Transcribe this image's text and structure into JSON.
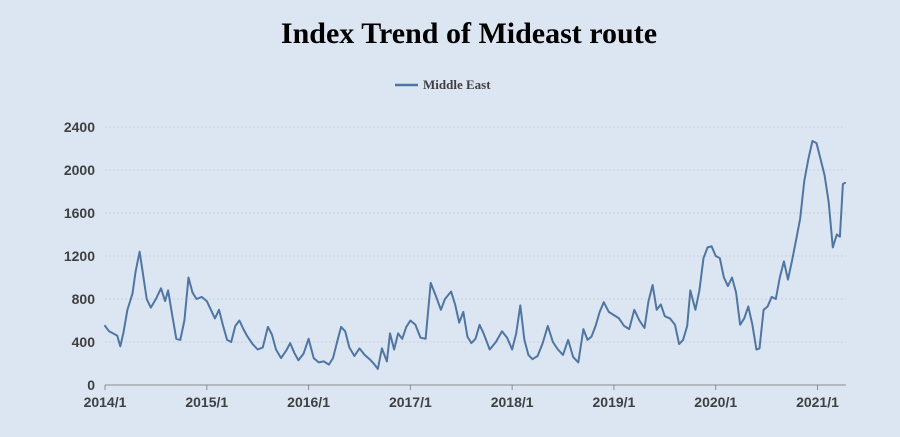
{
  "chart_data": {
    "type": "line",
    "title": "Index Trend of Mideast route",
    "xlabel": "",
    "ylabel": "",
    "legend_position": "top-center",
    "grid": true,
    "ylim": [
      0,
      2400
    ],
    "yticks": [
      0,
      400,
      800,
      1200,
      1600,
      2000,
      2400
    ],
    "xlim": [
      2014.0,
      2021.28
    ],
    "xticks": [
      {
        "value": 2014.0,
        "label": "2014/1"
      },
      {
        "value": 2015.0,
        "label": "2015/1"
      },
      {
        "value": 2016.0,
        "label": "2016/1"
      },
      {
        "value": 2017.0,
        "label": "2017/1"
      },
      {
        "value": 2018.0,
        "label": "2018/1"
      },
      {
        "value": 2019.0,
        "label": "2019/1"
      },
      {
        "value": 2020.0,
        "label": "2020/1"
      },
      {
        "value": 2021.0,
        "label": "2021/1"
      }
    ],
    "colors": {
      "series": "#4f76a3",
      "background": "#dce6f2"
    },
    "series": [
      {
        "name": "Middle East",
        "points": [
          [
            2014.0,
            550
          ],
          [
            2014.04,
            500
          ],
          [
            2014.08,
            480
          ],
          [
            2014.12,
            460
          ],
          [
            2014.15,
            360
          ],
          [
            2014.18,
            480
          ],
          [
            2014.22,
            700
          ],
          [
            2014.27,
            850
          ],
          [
            2014.3,
            1050
          ],
          [
            2014.34,
            1240
          ],
          [
            2014.37,
            1050
          ],
          [
            2014.41,
            800
          ],
          [
            2014.45,
            720
          ],
          [
            2014.5,
            800
          ],
          [
            2014.55,
            900
          ],
          [
            2014.59,
            780
          ],
          [
            2014.62,
            880
          ],
          [
            2014.66,
            650
          ],
          [
            2014.7,
            430
          ],
          [
            2014.74,
            420
          ],
          [
            2014.78,
            600
          ],
          [
            2014.82,
            1000
          ],
          [
            2014.86,
            860
          ],
          [
            2014.9,
            800
          ],
          [
            2014.95,
            820
          ],
          [
            2015.0,
            780
          ],
          [
            2015.04,
            700
          ],
          [
            2015.08,
            620
          ],
          [
            2015.12,
            700
          ],
          [
            2015.16,
            550
          ],
          [
            2015.2,
            420
          ],
          [
            2015.24,
            400
          ],
          [
            2015.28,
            550
          ],
          [
            2015.32,
            600
          ],
          [
            2015.36,
            520
          ],
          [
            2015.4,
            450
          ],
          [
            2015.45,
            380
          ],
          [
            2015.5,
            330
          ],
          [
            2015.55,
            350
          ],
          [
            2015.6,
            540
          ],
          [
            2015.64,
            470
          ],
          [
            2015.68,
            330
          ],
          [
            2015.73,
            250
          ],
          [
            2015.78,
            320
          ],
          [
            2015.82,
            390
          ],
          [
            2015.86,
            300
          ],
          [
            2015.9,
            230
          ],
          [
            2015.95,
            290
          ],
          [
            2016.0,
            430
          ],
          [
            2016.05,
            250
          ],
          [
            2016.1,
            210
          ],
          [
            2016.15,
            220
          ],
          [
            2016.2,
            190
          ],
          [
            2016.24,
            250
          ],
          [
            2016.28,
            400
          ],
          [
            2016.32,
            540
          ],
          [
            2016.36,
            500
          ],
          [
            2016.4,
            350
          ],
          [
            2016.45,
            270
          ],
          [
            2016.5,
            340
          ],
          [
            2016.55,
            280
          ],
          [
            2016.6,
            240
          ],
          [
            2016.64,
            200
          ],
          [
            2016.68,
            150
          ],
          [
            2016.72,
            340
          ],
          [
            2016.77,
            220
          ],
          [
            2016.8,
            480
          ],
          [
            2016.84,
            330
          ],
          [
            2016.88,
            480
          ],
          [
            2016.92,
            430
          ],
          [
            2016.96,
            540
          ],
          [
            2017.0,
            600
          ],
          [
            2017.05,
            560
          ],
          [
            2017.1,
            440
          ],
          [
            2017.15,
            430
          ],
          [
            2017.2,
            950
          ],
          [
            2017.25,
            830
          ],
          [
            2017.3,
            700
          ],
          [
            2017.34,
            800
          ],
          [
            2017.4,
            870
          ],
          [
            2017.44,
            750
          ],
          [
            2017.48,
            580
          ],
          [
            2017.52,
            680
          ],
          [
            2017.56,
            450
          ],
          [
            2017.6,
            390
          ],
          [
            2017.64,
            430
          ],
          [
            2017.68,
            560
          ],
          [
            2017.72,
            480
          ],
          [
            2017.78,
            330
          ],
          [
            2017.84,
            400
          ],
          [
            2017.9,
            500
          ],
          [
            2017.95,
            440
          ],
          [
            2018.0,
            330
          ],
          [
            2018.04,
            480
          ],
          [
            2018.08,
            740
          ],
          [
            2018.12,
            420
          ],
          [
            2018.16,
            280
          ],
          [
            2018.2,
            240
          ],
          [
            2018.25,
            270
          ],
          [
            2018.3,
            390
          ],
          [
            2018.35,
            550
          ],
          [
            2018.4,
            400
          ],
          [
            2018.45,
            330
          ],
          [
            2018.5,
            280
          ],
          [
            2018.55,
            420
          ],
          [
            2018.6,
            260
          ],
          [
            2018.65,
            210
          ],
          [
            2018.7,
            520
          ],
          [
            2018.74,
            420
          ],
          [
            2018.78,
            450
          ],
          [
            2018.82,
            550
          ],
          [
            2018.86,
            680
          ],
          [
            2018.9,
            770
          ],
          [
            2018.95,
            680
          ],
          [
            2019.0,
            650
          ],
          [
            2019.05,
            620
          ],
          [
            2019.1,
            550
          ],
          [
            2019.15,
            520
          ],
          [
            2019.2,
            700
          ],
          [
            2019.25,
            600
          ],
          [
            2019.3,
            530
          ],
          [
            2019.34,
            780
          ],
          [
            2019.38,
            930
          ],
          [
            2019.42,
            700
          ],
          [
            2019.46,
            750
          ],
          [
            2019.5,
            640
          ],
          [
            2019.55,
            620
          ],
          [
            2019.6,
            560
          ],
          [
            2019.64,
            380
          ],
          [
            2019.68,
            420
          ],
          [
            2019.72,
            550
          ],
          [
            2019.75,
            880
          ],
          [
            2019.8,
            700
          ],
          [
            2019.84,
            880
          ],
          [
            2019.88,
            1180
          ],
          [
            2019.92,
            1280
          ],
          [
            2019.96,
            1290
          ],
          [
            2020.0,
            1200
          ],
          [
            2020.04,
            1180
          ],
          [
            2020.08,
            1000
          ],
          [
            2020.12,
            920
          ],
          [
            2020.16,
            1000
          ],
          [
            2020.2,
            860
          ],
          [
            2020.24,
            560
          ],
          [
            2020.28,
            620
          ],
          [
            2020.32,
            730
          ],
          [
            2020.36,
            560
          ],
          [
            2020.4,
            330
          ],
          [
            2020.43,
            340
          ],
          [
            2020.47,
            700
          ],
          [
            2020.51,
            730
          ],
          [
            2020.55,
            820
          ],
          [
            2020.59,
            800
          ],
          [
            2020.63,
            1000
          ],
          [
            2020.67,
            1150
          ],
          [
            2020.71,
            980
          ],
          [
            2020.75,
            1160
          ],
          [
            2020.79,
            1350
          ],
          [
            2020.83,
            1550
          ],
          [
            2020.87,
            1900
          ],
          [
            2020.91,
            2100
          ],
          [
            2020.95,
            2270
          ],
          [
            2020.99,
            2250
          ],
          [
            2021.03,
            2100
          ],
          [
            2021.07,
            1950
          ],
          [
            2021.11,
            1700
          ],
          [
            2021.15,
            1280
          ],
          [
            2021.19,
            1400
          ],
          [
            2021.22,
            1380
          ],
          [
            2021.25,
            1870
          ],
          [
            2021.27,
            1880
          ]
        ]
      }
    ]
  }
}
